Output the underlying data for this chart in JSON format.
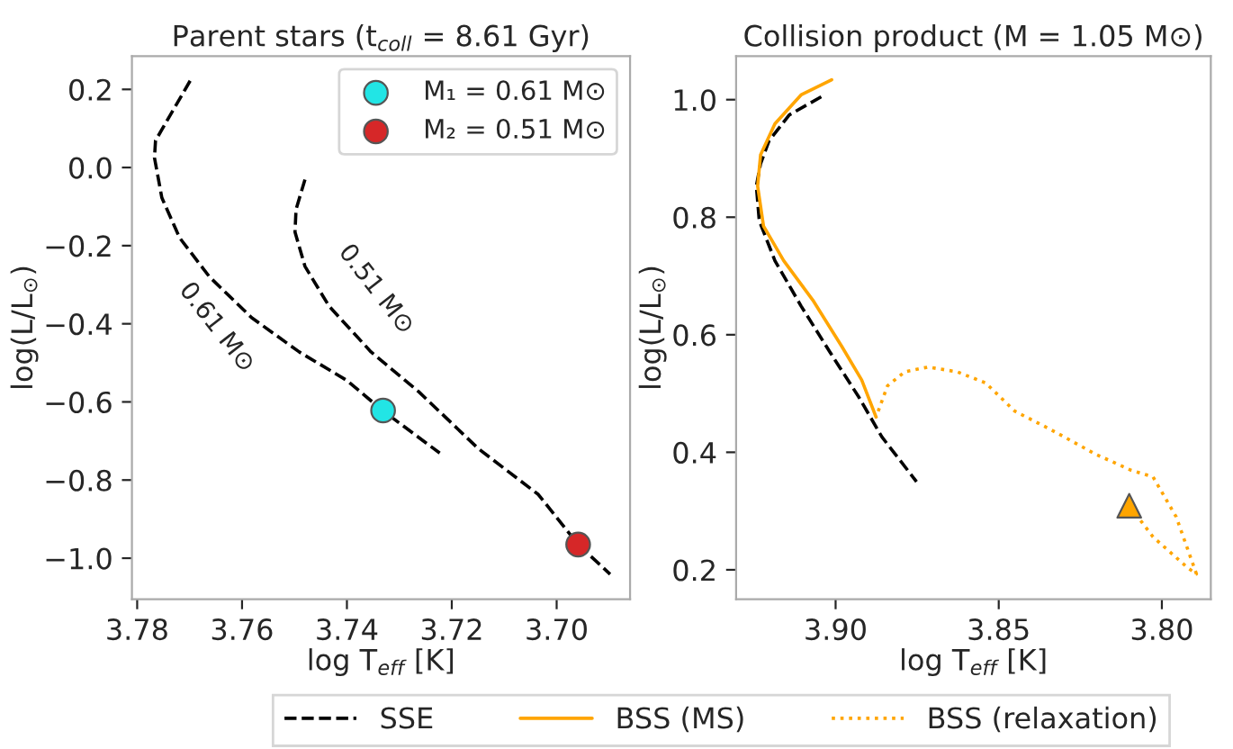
{
  "chart_data": [
    {
      "type": "line",
      "title": "Parent stars (t$_{coll}$ = 8.61 Gyr)",
      "xlabel": "log T$_{eff}$ [K]",
      "ylabel": "log(L/L$_{⊙}$)",
      "xlim": [
        3.781,
        3.686
      ],
      "ylim": [
        -1.105,
        0.285
      ],
      "xticks": [
        {
          "value": 3.78,
          "label": "3.78"
        },
        {
          "value": 3.76,
          "label": "3.76"
        },
        {
          "value": 3.74,
          "label": "3.74"
        },
        {
          "value": 3.72,
          "label": "3.72"
        },
        {
          "value": 3.7,
          "label": "3.70"
        }
      ],
      "yticks": [
        {
          "value": -1.0,
          "label": "−1.0"
        },
        {
          "value": -0.8,
          "label": "−0.8"
        },
        {
          "value": -0.6,
          "label": "−0.6"
        },
        {
          "value": -0.4,
          "label": "−0.4"
        },
        {
          "value": -0.2,
          "label": "−0.2"
        },
        {
          "value": 0,
          "label": "0.0"
        },
        0.2
      ],
      "grid": false,
      "legend": "top right",
      "series": [
        {
          "type": "line",
          "color": "#000000",
          "line_style": "dashed",
          "x": [
            3.7699,
            3.7765,
            3.7767,
            3.7753,
            3.7719,
            3.7662,
            3.7582,
            3.7491,
            3.74,
            3.7332,
            3.7223
          ],
          "values": [
            0.222,
            0.069,
            0.025,
            -0.077,
            -0.18,
            -0.28,
            -0.384,
            -0.472,
            -0.545,
            -0.622,
            -0.731
          ]
        },
        {
          "type": "line",
          "color": "#000000",
          "line_style": "dashed",
          "x": [
            3.748,
            3.7497,
            3.7499,
            3.748,
            3.7434,
            3.7354,
            3.7263,
            3.7149,
            3.7035,
            3.6959,
            3.6898
          ],
          "values": [
            -0.031,
            -0.107,
            -0.165,
            -0.253,
            -0.355,
            -0.472,
            -0.574,
            -0.72,
            -0.837,
            -0.965,
            -1.041
          ]
        },
        {
          "type": "scatter",
          "name": "M₁ = 0.61 M⊙",
          "color": "#22e5e5",
          "marker": "circle",
          "x": [
            3.7331
          ],
          "values": [
            -0.622
          ]
        },
        {
          "type": "scatter",
          "name": "M₂ = 0.51 M⊙",
          "color": "#d62728",
          "marker": "circle",
          "x": [
            3.6959
          ],
          "values": [
            -0.965
          ]
        }
      ],
      "annotations": [
        "0.61 M⊙",
        "0.51 M⊙"
      ]
    },
    {
      "type": "line",
      "title": "Collision product (M = 1.05 M⊙)",
      "xlabel": "log T$_{eff}$ [K]",
      "ylabel": "log(L/L$_{⊙}$)",
      "xlim": [
        3.9305,
        3.785
      ],
      "ylim": [
        0.15,
        1.074
      ],
      "xticks": [
        {
          "value": 3.9,
          "label": "3.90"
        },
        3.85,
        {
          "value": 3.8,
          "label": "3.80"
        }
      ],
      "yticks": [
        0.2,
        0.4,
        0.6,
        0.8,
        {
          "value": 1,
          "label": "1.0"
        }
      ],
      "grid": false,
      "legend": "bottom",
      "series": [
        {
          "type": "line",
          "name": "SSE",
          "color": "#000000",
          "line_style": "dashed",
          "x": [
            3.9044,
            3.9142,
            3.9204,
            3.923,
            3.9243,
            3.9234,
            3.9186,
            3.9106,
            3.9018,
            3.8929,
            3.8858,
            3.8752
          ],
          "values": [
            1.005,
            0.974,
            0.93,
            0.891,
            0.853,
            0.794,
            0.726,
            0.649,
            0.571,
            0.494,
            0.426,
            0.35
          ]
        },
        {
          "type": "line",
          "name": "BSS (MS)",
          "color": "#ffa500",
          "line_style": "solid",
          "x": [
            3.9012,
            3.9106,
            3.9186,
            3.923,
            3.9239,
            3.9221,
            3.9159,
            3.907,
            3.8982,
            3.892,
            3.8876
          ],
          "values": [
            1.034,
            1.008,
            0.959,
            0.906,
            0.853,
            0.785,
            0.726,
            0.659,
            0.581,
            0.523,
            0.46
          ]
        },
        {
          "type": "line",
          "name": "BSS (relaxation)",
          "color": "#ffa500",
          "line_style": "dotted",
          "x": [
            3.8097,
            3.8027,
            3.792,
            3.7894,
            3.7956,
            3.8027,
            3.8097,
            3.8204,
            3.8345,
            3.8451,
            3.854,
            3.8628,
            3.8717,
            3.8788,
            3.8841,
            3.8876
          ],
          "values": [
            0.307,
            0.256,
            0.203,
            0.193,
            0.29,
            0.358,
            0.37,
            0.397,
            0.44,
            0.47,
            0.518,
            0.537,
            0.545,
            0.537,
            0.513,
            0.46
          ]
        },
        {
          "type": "scatter",
          "color": "#ffa500",
          "marker": "triangle",
          "x": [
            3.81
          ],
          "values": [
            0.309
          ]
        }
      ]
    }
  ]
}
